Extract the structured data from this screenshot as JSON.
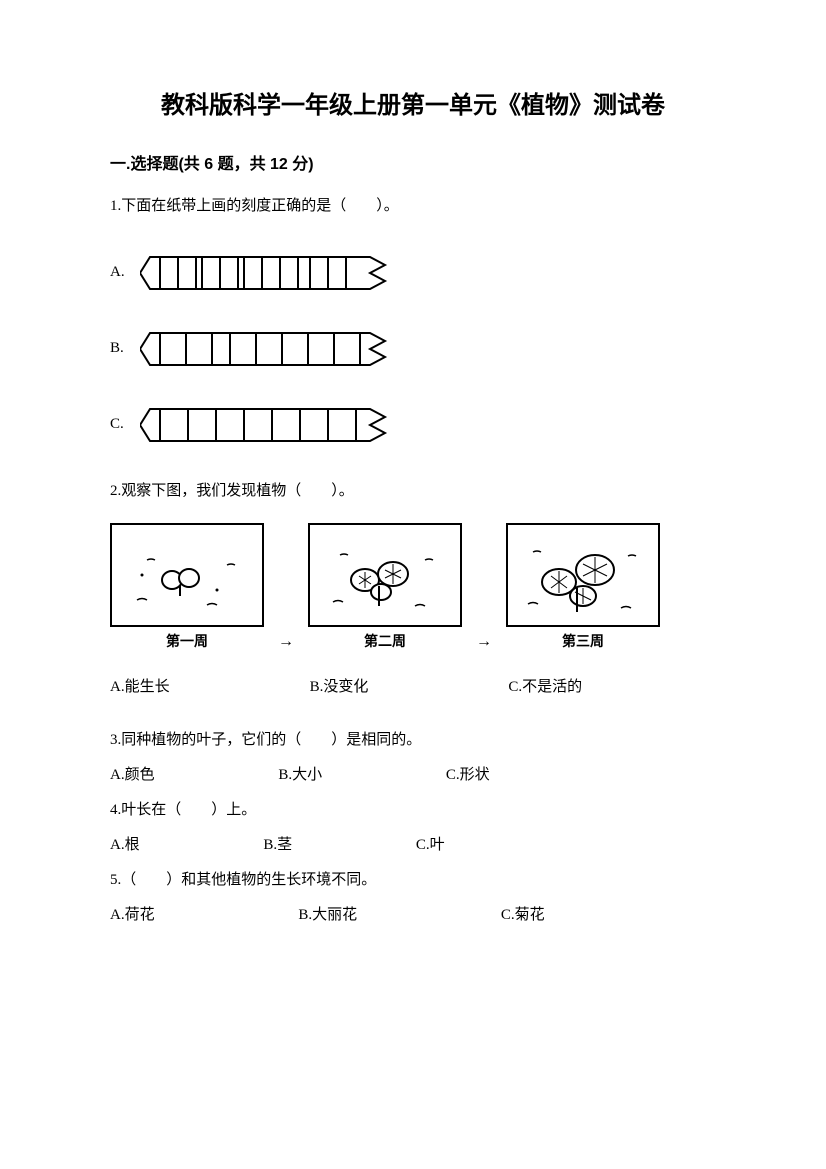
{
  "title": "教科版科学一年级上册第一单元《植物》测试卷",
  "section1": {
    "heading": "一.选择题(共 6 题，共 12 分)",
    "q1": {
      "text": "1.下面在纸带上画的刻度正确的是（　　）。",
      "labelA": "A.",
      "labelB": "B.",
      "labelC": "C.",
      "rulerA_ticks": [
        0,
        18,
        36,
        42,
        60,
        78,
        84,
        102,
        120,
        138,
        150,
        168,
        186
      ],
      "rulerB_ticks": [
        0,
        26,
        52,
        70,
        96,
        122,
        148,
        174,
        200
      ],
      "rulerC_ticks": [
        0,
        28,
        56,
        84,
        112,
        140,
        168,
        196
      ]
    },
    "q2": {
      "text": "2.观察下图，我们发现植物（　　）。",
      "captions": [
        "第一周",
        "第二周",
        "第三周"
      ],
      "arrow": "→",
      "optA": "A.能生长",
      "optB": "B.没变化",
      "optC": "C.不是活的"
    },
    "q3": {
      "text": "3.同种植物的叶子，它们的（　　）是相同的。",
      "optA": "A.颜色",
      "optB": "B.大小",
      "optC": "C.形状"
    },
    "q4": {
      "text": "4.叶长在（　　）上。",
      "optA": "A.根",
      "optB": "B.茎",
      "optC": "C.叶"
    },
    "q5": {
      "text": "5.（　　）和其他植物的生长环境不同。",
      "optA": "A.荷花",
      "optB": "B.大丽花",
      "optC": "C.菊花"
    }
  },
  "colors": {
    "text": "#000000",
    "bg": "#ffffff",
    "stroke": "#000000"
  }
}
